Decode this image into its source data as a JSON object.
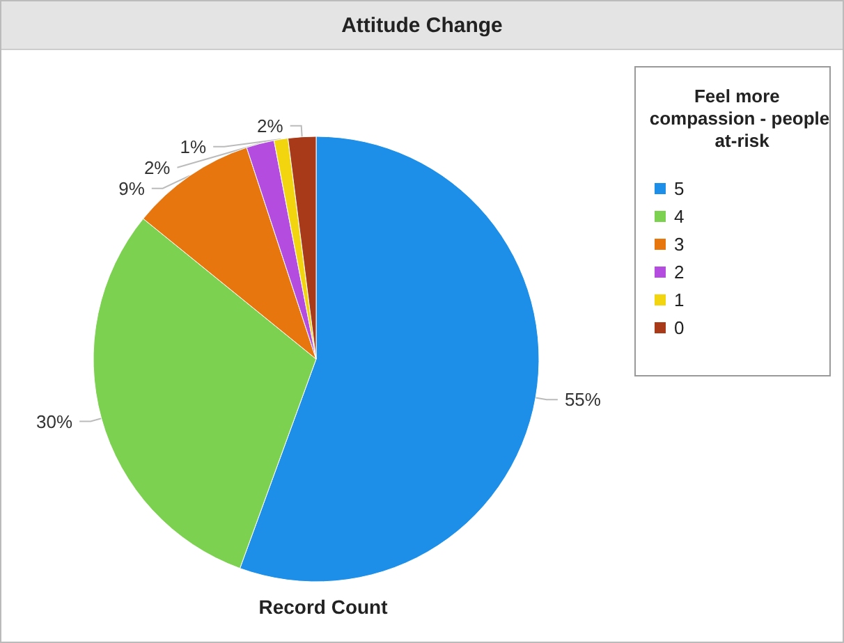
{
  "chart_data": {
    "type": "pie",
    "title": "Attitude Change",
    "xlabel": "Record Count",
    "legend_title": "Feel more compassion - people at-risk",
    "legend": "top right",
    "categories": [
      "5",
      "4",
      "3",
      "2",
      "1",
      "0"
    ],
    "values": [
      55,
      30,
      9,
      2,
      1,
      2
    ],
    "value_labels": [
      "55%",
      "30%",
      "9%",
      "2%",
      "1%",
      "2%"
    ],
    "colors": [
      "#1e8fe8",
      "#7cd150",
      "#e8760f",
      "#b44ce0",
      "#f2d40f",
      "#a83a1a"
    ]
  }
}
